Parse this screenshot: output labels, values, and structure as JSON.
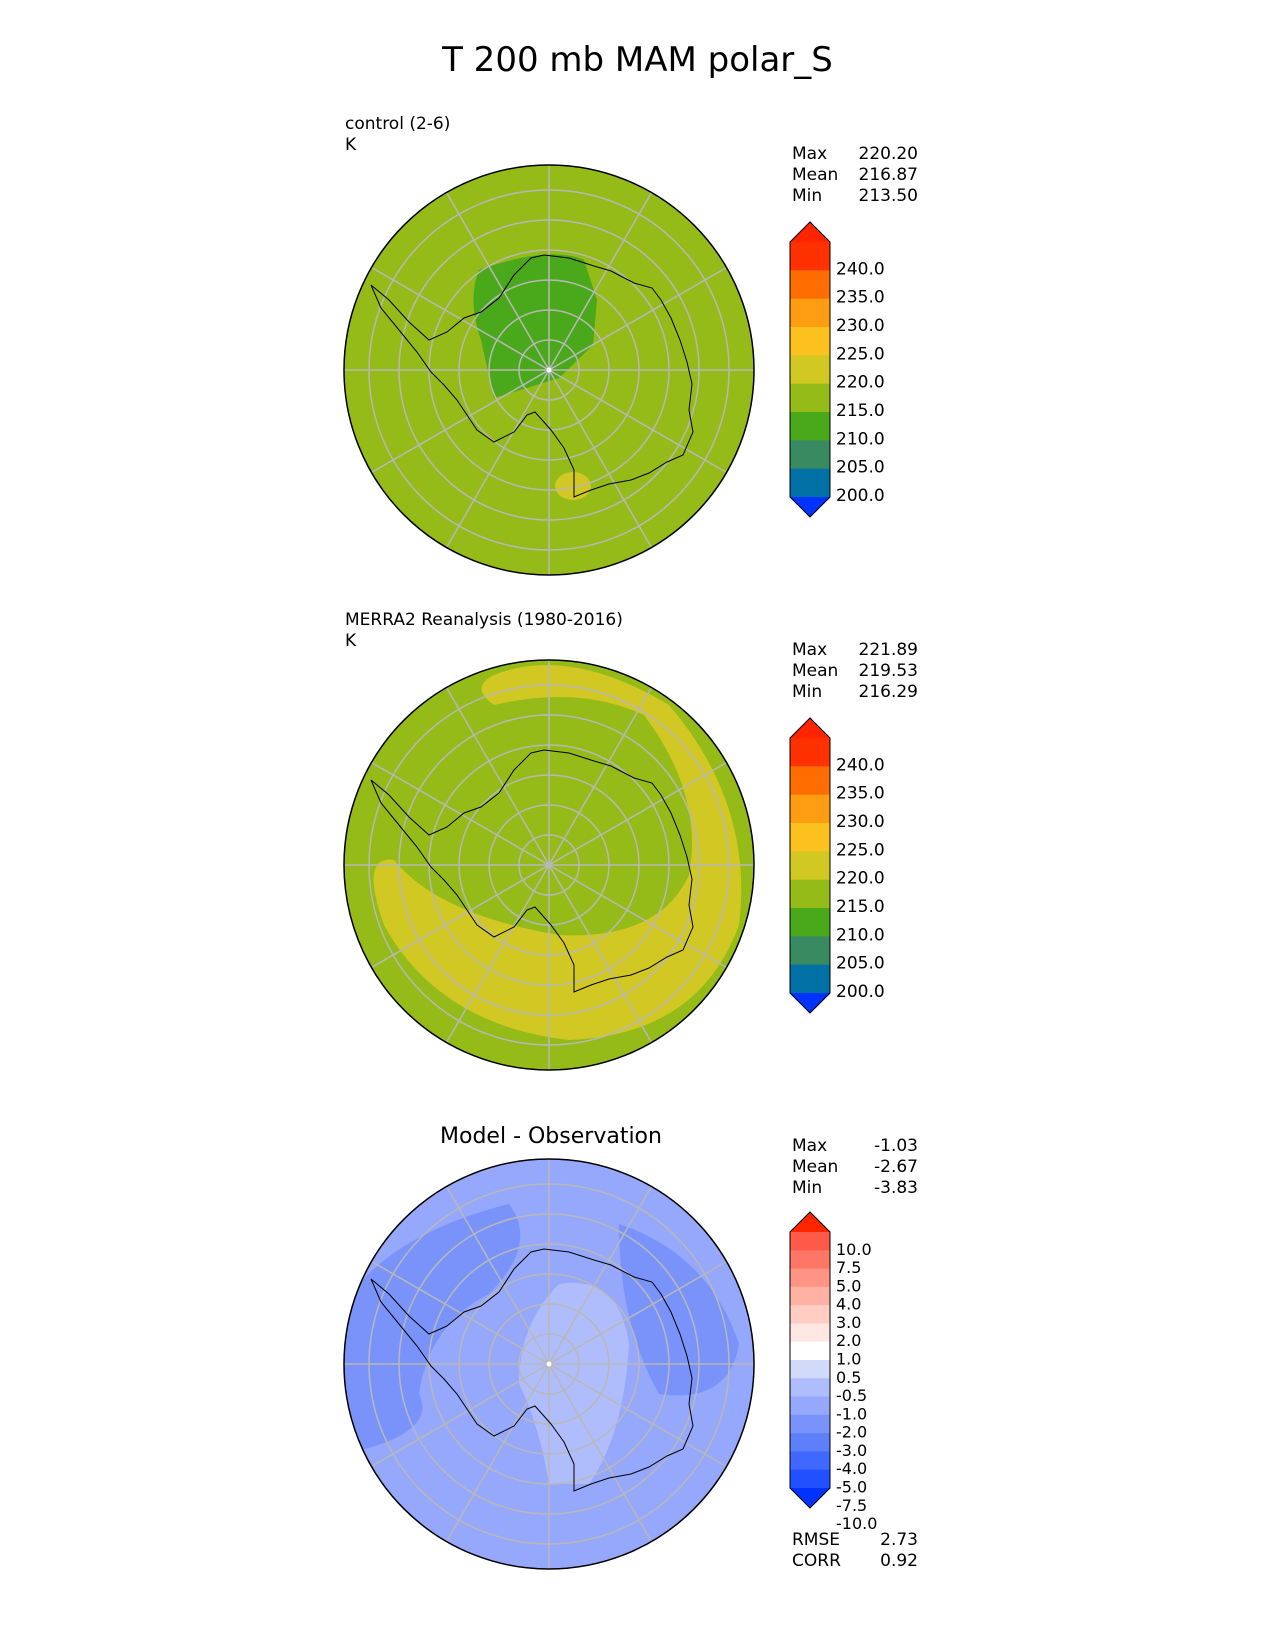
{
  "figure": {
    "title": "T 200 mb MAM polar_S"
  },
  "palettes": {
    "abs": [
      "#0033ff",
      "#0070a5",
      "#398a61",
      "#4aa81b",
      "#94bb18",
      "#d1c824",
      "#fdc11f",
      "#fe9d12",
      "#ff6c00",
      "#ff3100",
      "#ff2500"
    ],
    "diff": [
      "#0033ff",
      "#2050ff",
      "#4068ff",
      "#5d7ff8",
      "#7a93fb",
      "#96a8fc",
      "#b0bdfc",
      "#d2daf9",
      "#ffffff",
      "#ffe8e4",
      "#ffcdc2",
      "#ffb1a3",
      "#ff9384",
      "#ff7666",
      "#ff5a47",
      "#ff2500"
    ]
  },
  "panels": [
    {
      "id": "control",
      "label": "control (2-6)",
      "units": "K",
      "stats": [
        {
          "key": "Max",
          "value": "220.20"
        },
        {
          "key": "Mean",
          "value": "216.87"
        },
        {
          "key": "Min",
          "value": "213.50"
        }
      ],
      "colorbar": {
        "ticks": [
          "240.0",
          "235.0",
          "230.0",
          "225.0",
          "220.0",
          "215.0",
          "210.0",
          "205.0",
          "200.0"
        ],
        "palette": "abs"
      }
    },
    {
      "id": "obs",
      "label": "MERRA2 Reanalysis (1980-2016)",
      "units": "K",
      "stats": [
        {
          "key": "Max",
          "value": "221.89"
        },
        {
          "key": "Mean",
          "value": "219.53"
        },
        {
          "key": "Min",
          "value": "216.29"
        }
      ],
      "colorbar": {
        "ticks": [
          "240.0",
          "235.0",
          "230.0",
          "225.0",
          "220.0",
          "215.0",
          "210.0",
          "205.0",
          "200.0"
        ],
        "palette": "abs"
      }
    },
    {
      "id": "diff",
      "title": "Model - Observation",
      "stats": [
        {
          "key": "Max",
          "value": "-1.03"
        },
        {
          "key": "Mean",
          "value": "-2.67"
        },
        {
          "key": "Min",
          "value": "-3.83"
        }
      ],
      "metrics": [
        {
          "key": "RMSE",
          "value": "2.73"
        },
        {
          "key": "CORR",
          "value": "0.92"
        }
      ],
      "colorbar": {
        "ticks": [
          "10.0",
          "7.5",
          "5.0",
          "4.0",
          "3.0",
          "2.0",
          "1.0",
          "0.5",
          "-0.5",
          "-1.0",
          "-2.0",
          "-3.0",
          "-4.0",
          "-5.0",
          "-7.5",
          "-10.0"
        ],
        "palette": "diff"
      }
    }
  ],
  "chart_data": [
    {
      "type": "heatmap",
      "projection": "south-polar-stereographic",
      "title": "control (2-6)",
      "units": "K",
      "field_summary": {
        "max": 220.2,
        "mean": 216.87,
        "min": 213.5
      },
      "colorbar_levels": [
        200,
        205,
        210,
        215,
        220,
        225,
        230,
        235,
        240
      ],
      "regions": [
        {
          "area": "background ocean / periphery",
          "range": "215-220"
        },
        {
          "area": "East Antarctic plateau / near pole",
          "range": "210-215"
        },
        {
          "area": "small patch near Ross Sea",
          "range": "220-225"
        }
      ]
    },
    {
      "type": "heatmap",
      "projection": "south-polar-stereographic",
      "title": "MERRA2 Reanalysis (1980-2016)",
      "units": "K",
      "field_summary": {
        "max": 221.89,
        "mean": 219.53,
        "min": 216.29
      },
      "colorbar_levels": [
        200,
        205,
        210,
        215,
        220,
        225,
        230,
        235,
        240
      ],
      "regions": [
        {
          "area": "interior and periphery",
          "range": "215-220"
        },
        {
          "area": "curved band from Indian Ocean sector around to Pacific sector",
          "range": "220-225"
        }
      ]
    },
    {
      "type": "heatmap",
      "projection": "south-polar-stereographic",
      "title": "Model - Observation",
      "units": "K",
      "field_summary": {
        "max": -1.03,
        "mean": -2.67,
        "min": -3.83,
        "rmse": 2.73,
        "corr": 0.92
      },
      "colorbar_levels": [
        -10.0,
        -7.5,
        -5.0,
        -4.0,
        -3.0,
        -2.0,
        -1.0,
        -0.5,
        0.5,
        1.0,
        2.0,
        3.0,
        4.0,
        5.0,
        7.5,
        10.0
      ],
      "regions": [
        {
          "area": "most of domain",
          "range": "-3.0 to -2.0"
        },
        {
          "area": "ring / outer sectors",
          "range": "-4.0 to -3.0"
        },
        {
          "area": "near pole and Ross sector",
          "range": "-2.0 to -1.0"
        }
      ]
    }
  ]
}
